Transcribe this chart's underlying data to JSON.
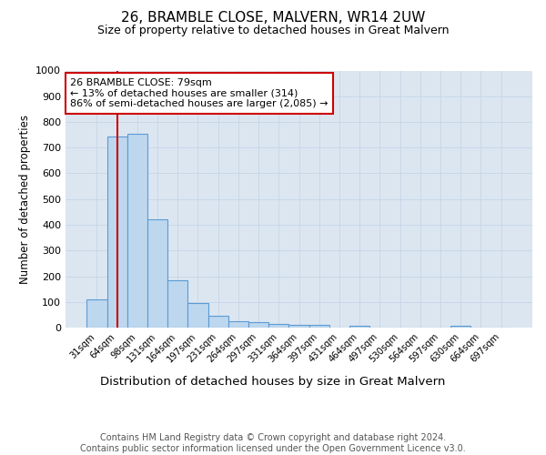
{
  "title": "26, BRAMBLE CLOSE, MALVERN, WR14 2UW",
  "subtitle": "Size of property relative to detached houses in Great Malvern",
  "xlabel": "Distribution of detached houses by size in Great Malvern",
  "ylabel": "Number of detached properties",
  "categories": [
    "31sqm",
    "64sqm",
    "98sqm",
    "131sqm",
    "164sqm",
    "197sqm",
    "231sqm",
    "264sqm",
    "297sqm",
    "331sqm",
    "364sqm",
    "397sqm",
    "431sqm",
    "464sqm",
    "497sqm",
    "530sqm",
    "564sqm",
    "597sqm",
    "630sqm",
    "664sqm",
    "697sqm"
  ],
  "values": [
    110,
    745,
    755,
    420,
    185,
    95,
    45,
    25,
    22,
    15,
    12,
    12,
    0,
    7,
    0,
    0,
    0,
    0,
    7,
    0,
    0
  ],
  "bar_color": "#bdd7ee",
  "bar_edge_color": "#5b9bd5",
  "bar_edge_width": 0.8,
  "grid_color": "#c8d8e8",
  "background_color": "#dce6f1",
  "vline_x": 1,
  "vline_color": "#cc0000",
  "annotation_text": "26 BRAMBLE CLOSE: 79sqm\n← 13% of detached houses are smaller (314)\n86% of semi-detached houses are larger (2,085) →",
  "annotation_box_color": "#ffffff",
  "annotation_box_edge": "#cc0000",
  "ylim": [
    0,
    1000
  ],
  "yticks": [
    0,
    100,
    200,
    300,
    400,
    500,
    600,
    700,
    800,
    900,
    1000
  ],
  "footer_text": "Contains HM Land Registry data © Crown copyright and database right 2024.\nContains public sector information licensed under the Open Government Licence v3.0.",
  "title_fontsize": 11,
  "subtitle_fontsize": 9,
  "xlabel_fontsize": 9.5,
  "ylabel_fontsize": 8.5,
  "footer_fontsize": 7
}
